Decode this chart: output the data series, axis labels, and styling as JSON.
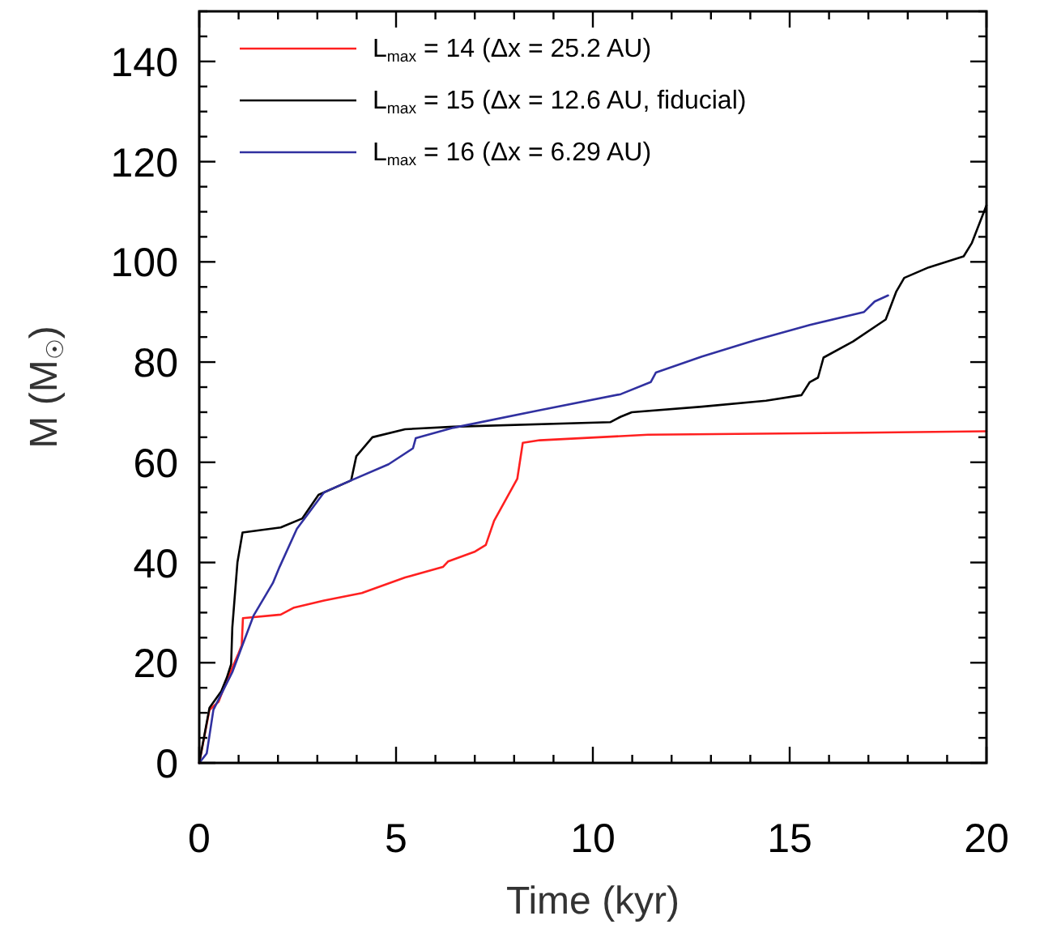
{
  "chart_data": {
    "type": "line",
    "xlabel": "Time (kyr)",
    "ylabel": "M (M$_{☉}$)",
    "xlim": [
      0,
      20
    ],
    "ylim": [
      0,
      150
    ],
    "xticks": [
      0,
      {
        "value": 1,
        "label": null
      },
      {
        "value": 2,
        "label": null
      },
      {
        "value": 3,
        "label": null
      },
      {
        "value": 4,
        "label": null
      },
      5,
      {
        "value": 6,
        "label": null
      },
      {
        "value": 7,
        "label": null
      },
      {
        "value": 8,
        "label": null
      },
      {
        "value": 9,
        "label": null
      },
      10,
      {
        "value": 11,
        "label": null
      },
      {
        "value": 12,
        "label": null
      },
      {
        "value": 13,
        "label": null
      },
      {
        "value": 14,
        "label": null
      },
      15,
      {
        "value": 16,
        "label": null
      },
      {
        "value": 17,
        "label": null
      },
      {
        "value": 18,
        "label": null
      },
      {
        "value": 19,
        "label": null
      },
      20
    ],
    "yticks": [
      0,
      {
        "value": 5,
        "label": null
      },
      {
        "value": 10,
        "label": null
      },
      {
        "value": 15,
        "label": null
      },
      20,
      {
        "value": 25,
        "label": null
      },
      {
        "value": 30,
        "label": null
      },
      {
        "value": 35,
        "label": null
      },
      40,
      {
        "value": 45,
        "label": null
      },
      {
        "value": 50,
        "label": null
      },
      {
        "value": 55,
        "label": null
      },
      60,
      {
        "value": 65,
        "label": null
      },
      {
        "value": 70,
        "label": null
      },
      {
        "value": 75,
        "label": null
      },
      80,
      {
        "value": 85,
        "label": null
      },
      {
        "value": 90,
        "label": null
      },
      {
        "value": 95,
        "label": null
      },
      100,
      {
        "value": 105,
        "label": null
      },
      {
        "value": 110,
        "label": null
      },
      {
        "value": 115,
        "label": null
      },
      120,
      {
        "value": 125,
        "label": null
      },
      {
        "value": 130,
        "label": null
      },
      {
        "value": 135,
        "label": null
      },
      140,
      {
        "value": 145,
        "label": null
      },
      {
        "value": 150,
        "label": null
      }
    ],
    "grid": false,
    "legend": "top left",
    "marker": "none",
    "line_style": "solid",
    "series": [
      {
        "name": "L$_{max}$ = 14 (Δx = 25.2 AU)",
        "color": "#ff2020",
        "x": [
          0,
          0.26,
          0.49,
          0.7,
          1.0,
          1.08,
          1.11,
          2.07,
          2.41,
          3.17,
          4.13,
          5.23,
          6.19,
          6.32,
          7.01,
          7.28,
          7.49,
          8.08,
          8.22,
          8.65,
          11.4,
          16.89,
          20
        ],
        "values": [
          0,
          10.6,
          12.2,
          16.5,
          21.9,
          23.5,
          28.9,
          29.6,
          31,
          32.4,
          33.9,
          37,
          39.1,
          40.2,
          42.2,
          43.5,
          48.3,
          56.7,
          63.9,
          64.4,
          65.5,
          65.9,
          66.2
        ]
      },
      {
        "name": "L$_{max}$ = 15 (Δx = 12.6 AU, fiducial)",
        "color": "#000000",
        "x": [
          0,
          0.26,
          0.56,
          0.7,
          0.81,
          0.84,
          0.97,
          1.1,
          2.07,
          2.62,
          3.03,
          3.86,
          3.99,
          4.4,
          5.23,
          6.46,
          10.44,
          10.71,
          10.99,
          12.77,
          14.4,
          15.3,
          15.51,
          15.72,
          15.86,
          16.61,
          17.44,
          17.71,
          17.91,
          18.53,
          19.42,
          19.63,
          20
        ],
        "values": [
          0,
          11,
          14.3,
          17,
          19.7,
          27,
          40,
          46,
          47,
          48.8,
          53.5,
          56.4,
          61.2,
          65,
          66.6,
          67.1,
          68,
          69.1,
          70,
          71.1,
          72.3,
          73.4,
          76,
          76.9,
          80.9,
          84.1,
          88.5,
          94.1,
          96.8,
          98.9,
          101.1,
          103.8,
          111.3
        ]
      },
      {
        "name": "L$_{max}$ = 16 (Δx = 6.29 AU)",
        "color": "#3030a0",
        "x": [
          0,
          0.19,
          0.36,
          0.84,
          1.38,
          1.87,
          2.04,
          2.48,
          3.17,
          3.86,
          4.81,
          5.43,
          5.5,
          6.46,
          8.65,
          10.71,
          11.47,
          11.6,
          12.77,
          14.14,
          15.51,
          16.89,
          17.16,
          17.5
        ],
        "values": [
          0,
          1.9,
          10.6,
          18.1,
          29.4,
          35.9,
          39.1,
          46.7,
          54,
          56.4,
          59.6,
          62.8,
          64.8,
          66.9,
          70.4,
          73.6,
          76,
          77.9,
          81.1,
          84.4,
          87.4,
          90,
          92.1,
          93.3
        ]
      }
    ]
  }
}
